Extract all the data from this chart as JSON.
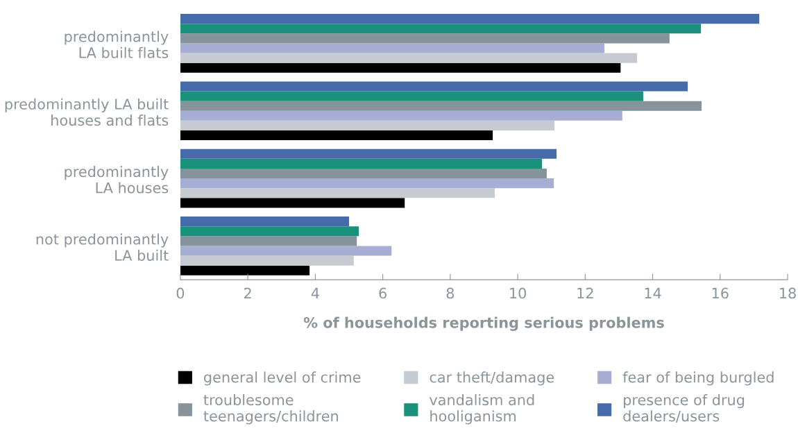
{
  "chart_data": {
    "type": "bar",
    "orientation": "horizontal",
    "categories": [
      "predominantly\nLA built flats",
      "predominantly LA built\nhouses and flats",
      "predominantly\nLA houses",
      "not predominantly\nLA built"
    ],
    "xlabel": "% of households reporting serious problems",
    "xlim": [
      0,
      18
    ],
    "xticks": [
      0,
      2,
      4,
      6,
      8,
      10,
      12,
      14,
      16,
      18
    ],
    "grid": false,
    "legend": "bottom",
    "series": [
      {
        "name": "general level of crime",
        "color": "#000000",
        "values": [
          13.05,
          9.26,
          6.65,
          3.83
        ]
      },
      {
        "name": "car theft/damage",
        "color": "#c5cbd0",
        "values": [
          13.54,
          11.09,
          9.32,
          5.14
        ]
      },
      {
        "name": "fear of being burgled",
        "color": "#a6aed4",
        "values": [
          12.57,
          13.1,
          11.07,
          6.26
        ]
      },
      {
        "name": "troublesome\nteenagers/children",
        "color": "#86939a",
        "values": [
          14.5,
          15.45,
          10.86,
          5.23
        ]
      },
      {
        "name": "vandalism and\nhooliganism",
        "color": "#1a917a",
        "values": [
          15.43,
          13.72,
          10.72,
          5.29
        ]
      },
      {
        "name": "presence of drug\ndealers/users",
        "color": "#466bab",
        "values": [
          17.16,
          15.04,
          11.15,
          5.0
        ]
      }
    ]
  }
}
